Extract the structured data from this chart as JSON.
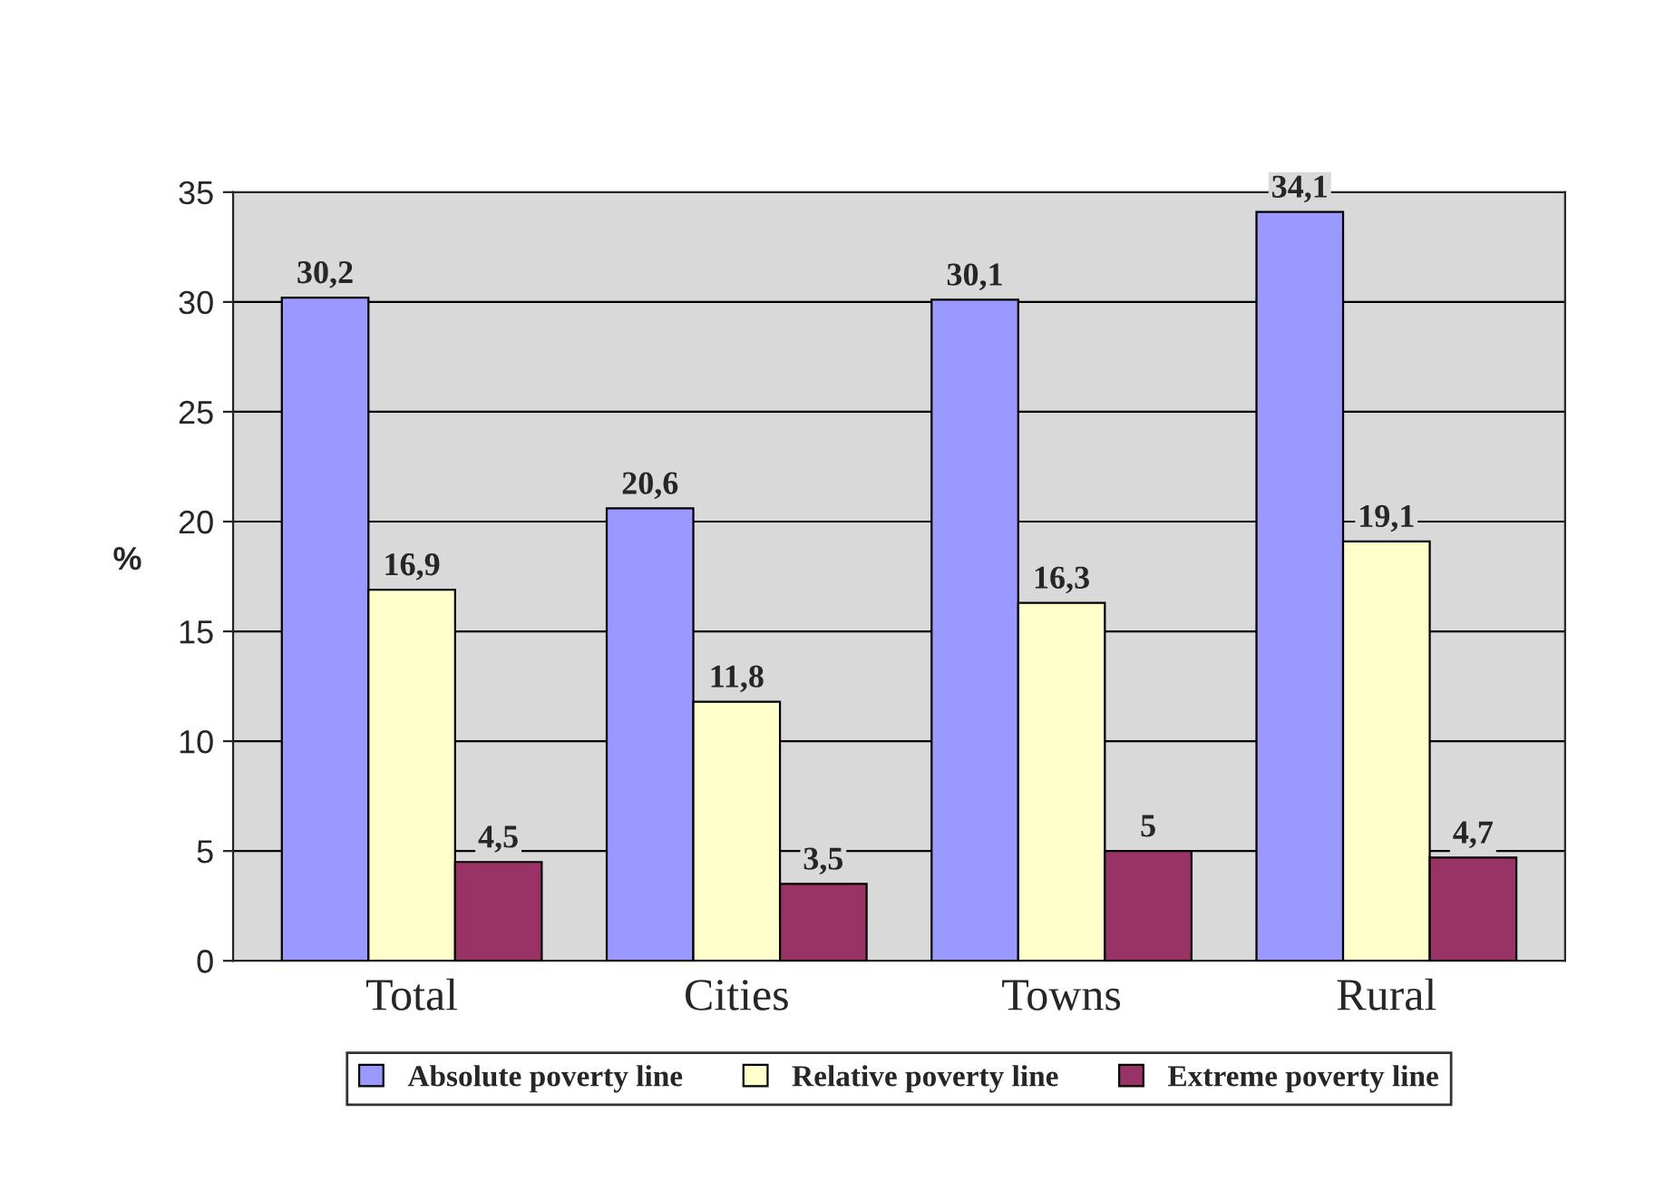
{
  "chart_data": {
    "type": "bar",
    "ylabel": "%",
    "categories": [
      "Total",
      "Cities",
      "Towns",
      "Rural"
    ],
    "series": [
      {
        "name": "Absolute poverty line",
        "color": "#9999ff",
        "values": [
          30.2,
          20.6,
          30.1,
          34.1
        ],
        "value_labels": [
          "30,2",
          "20,6",
          "30,1",
          "34,1"
        ]
      },
      {
        "name": "Relative poverty line",
        "color": "#ffffcc",
        "values": [
          16.9,
          11.8,
          16.3,
          19.1
        ],
        "value_labels": [
          "16,9",
          "11,8",
          "16,3",
          "19,1"
        ]
      },
      {
        "name": "Extreme poverty line",
        "color": "#993366",
        "values": [
          4.5,
          3.5,
          5,
          4.7
        ],
        "value_labels": [
          "4,5",
          "3,5",
          "5",
          "4,7"
        ]
      }
    ],
    "ylim": [
      0,
      35
    ],
    "yticks": [
      0,
      5,
      10,
      15,
      20,
      25,
      30,
      35
    ],
    "grid": "y",
    "legend": "bottom"
  }
}
